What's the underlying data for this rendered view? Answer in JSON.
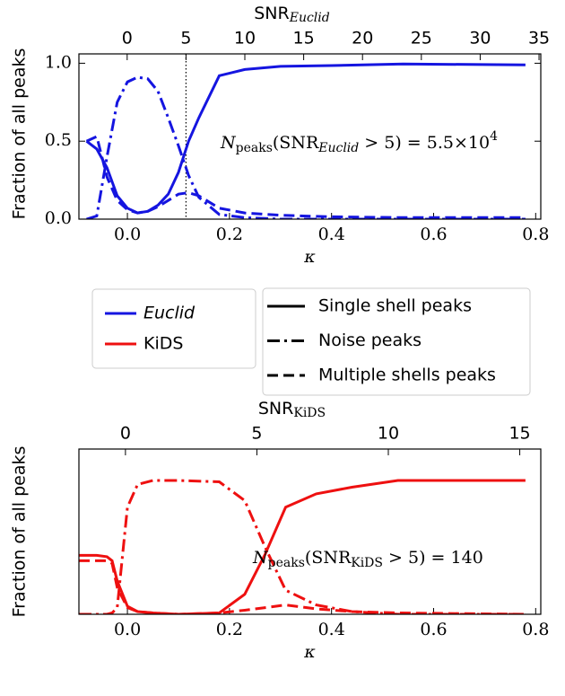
{
  "chart_data": [
    {
      "type": "line",
      "color": "#1515e0",
      "xlabel": "κ",
      "x2label": {
        "main": "SNR",
        "sub": "Euclid",
        "italic": true
      },
      "ylabel": "Fraction of all peaks",
      "xlim": [
        -0.095,
        0.81
      ],
      "xticks": [
        {
          "value": 0,
          "label": "0.0"
        },
        0.2,
        0.4,
        0.6,
        0.8
      ],
      "x2lim": [
        -4.1,
        35.15
      ],
      "x2ticks": [
        0,
        5,
        10,
        15,
        20,
        25,
        30,
        35
      ],
      "ylim": [
        0,
        1.06
      ],
      "yticks": [
        {
          "value": 0,
          "label": "0.0"
        },
        0.5,
        {
          "value": 1,
          "label": "1.0"
        }
      ],
      "vlines": [
        {
          "axis": "x2",
          "value": 5
        }
      ],
      "annotation": {
        "N": "N",
        "N_sub": "peaks",
        "pre": "(SNR",
        "pre_sub": "Euclid",
        "italic": true,
        "post": " > 5) = 5.5×10",
        "post_sup": "4"
      },
      "x": [
        -0.08,
        -0.06,
        -0.04,
        -0.02,
        0.0,
        0.02,
        0.04,
        0.06,
        0.08,
        0.1,
        0.12,
        0.14,
        0.18,
        0.23,
        0.3,
        0.4,
        0.54,
        0.78
      ],
      "series": [
        {
          "style": "solid",
          "values": [
            0.5,
            0.45,
            0.33,
            0.15,
            0.07,
            0.04,
            0.05,
            0.09,
            0.16,
            0.3,
            0.5,
            0.65,
            0.92,
            0.96,
            0.98,
            0.985,
            0.995,
            0.99
          ]
        },
        {
          "style": "dashdot",
          "values": [
            0,
            0.02,
            0.4,
            0.75,
            0.88,
            0.91,
            0.9,
            0.82,
            0.65,
            0.47,
            0.28,
            0.14,
            0.03,
            0.01,
            0,
            0,
            0,
            0
          ]
        },
        {
          "style": "dashed",
          "values": [
            0.5,
            0.53,
            0.27,
            0.12,
            0.06,
            0.04,
            0.05,
            0.08,
            0.12,
            0.16,
            0.17,
            0.15,
            0.07,
            0.04,
            0.025,
            0.015,
            0.01,
            0.01
          ]
        }
      ]
    },
    {
      "type": "line",
      "color": "#ee1010",
      "xlabel": "κ",
      "x2label": {
        "main": "SNR",
        "sub": "KiDS",
        "italic": false
      },
      "ylabel": "Fraction of all peaks",
      "xlim": [
        -0.095,
        0.81
      ],
      "xticks": [
        {
          "value": 0,
          "label": "0.0"
        },
        0.2,
        0.4,
        0.6,
        0.8
      ],
      "x2lim": [
        -1.77,
        15.8
      ],
      "x2ticks": [
        0,
        5,
        10,
        15
      ],
      "ylim": [
        0,
        1.235
      ],
      "annotation": {
        "N": "N",
        "N_sub": "peaks",
        "pre": "(SNR",
        "pre_sub": "KiDS",
        "italic": false,
        "post": " > 5) = 140"
      },
      "x": [
        -0.095,
        -0.06,
        -0.04,
        -0.03,
        -0.02,
        0.0,
        0.02,
        0.05,
        0.1,
        0.18,
        0.23,
        0.27,
        0.31,
        0.37,
        0.44,
        0.53,
        0.78
      ],
      "series": [
        {
          "style": "solid",
          "values": [
            0.44,
            0.44,
            0.43,
            0.4,
            0.25,
            0.06,
            0.02,
            0.01,
            0.0,
            0.01,
            0.15,
            0.45,
            0.8,
            0.9,
            0.95,
            1.0,
            1.0
          ]
        },
        {
          "style": "dashdot",
          "values": [
            0,
            0,
            0,
            0.01,
            0.05,
            0.8,
            0.97,
            1.0,
            1.0,
            0.99,
            0.85,
            0.5,
            0.18,
            0.07,
            0.02,
            0.0,
            0.0
          ]
        },
        {
          "style": "dashed",
          "values": [
            0.4,
            0.4,
            0.4,
            0.38,
            0.2,
            0.05,
            0.02,
            0.01,
            0.0,
            0.01,
            0.03,
            0.05,
            0.07,
            0.04,
            0.02,
            0.01,
            0.0
          ]
        }
      ]
    }
  ],
  "legend": {
    "colors": [
      {
        "name": "Euclid",
        "color": "#1515e0",
        "italic": true
      },
      {
        "name": "KiDS",
        "color": "#ee1010",
        "italic": false
      }
    ],
    "styles": [
      {
        "name": "Single shell peaks",
        "style": "solid"
      },
      {
        "name": "Noise peaks",
        "style": "dashdot"
      },
      {
        "name": "Multiple shells peaks",
        "style": "dashed"
      }
    ]
  }
}
